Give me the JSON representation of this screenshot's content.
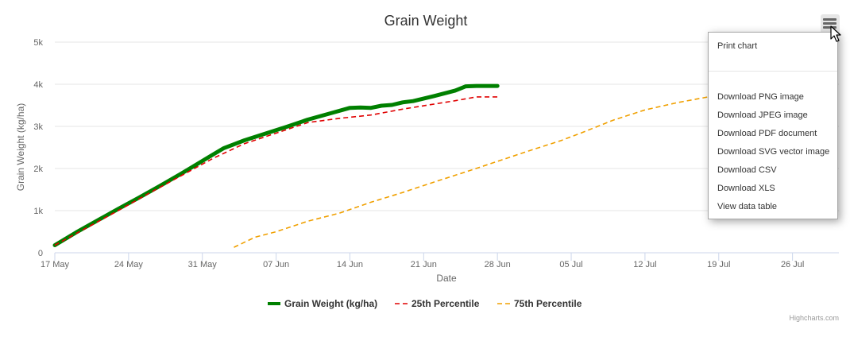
{
  "chart_data": {
    "type": "line",
    "title": "Grain Weight",
    "xlabel": "Date",
    "ylabel": "Grain Weight (kg/ha)",
    "x_tick_labels": [
      "17 May",
      "24 May",
      "31 May",
      "07 Jun",
      "14 Jun",
      "21 Jun",
      "28 Jun",
      "05 Jul",
      "12 Jul",
      "19 Jul",
      "26 Jul"
    ],
    "x_ticks_day": [
      0,
      7,
      14,
      21,
      28,
      35,
      42,
      49,
      56,
      63,
      70
    ],
    "x_range_day": [
      0,
      74.4
    ],
    "y_tick_labels": [
      "0",
      "1k",
      "2k",
      "3k",
      "4k",
      "5k"
    ],
    "y_ticks": [
      0,
      1000,
      2000,
      3000,
      4000,
      5000
    ],
    "ylim": [
      0,
      5000
    ],
    "grid": true,
    "legend_position": "bottom-center",
    "series": [
      {
        "name": "Grain Weight (kg/ha)",
        "color": "#008000",
        "style": "solid",
        "x_day": [
          0,
          2,
          4,
          6,
          8,
          10,
          12,
          14,
          15,
          16,
          18,
          20,
          22,
          24,
          26,
          28,
          29,
          30,
          31,
          32,
          33,
          34,
          36,
          38,
          39,
          40,
          42
        ],
        "y": [
          180,
          480,
          760,
          1040,
          1310,
          1590,
          1880,
          2180,
          2330,
          2480,
          2670,
          2830,
          2990,
          3160,
          3300,
          3440,
          3450,
          3440,
          3490,
          3510,
          3570,
          3600,
          3720,
          3850,
          3950,
          3960,
          3960
        ]
      },
      {
        "name": "25th Percentile",
        "color": "#e00000",
        "style": "dash",
        "x_day": [
          0,
          3,
          6,
          9,
          12,
          15,
          18,
          21,
          24,
          27,
          30,
          33,
          36,
          38,
          40,
          42
        ],
        "y": [
          180,
          590,
          1000,
          1420,
          1830,
          2240,
          2590,
          2840,
          3090,
          3190,
          3270,
          3410,
          3530,
          3610,
          3700,
          3700
        ]
      },
      {
        "name": "75th Percentile",
        "color": "#f0a000",
        "style": "dash",
        "x_day": [
          17,
          19,
          21,
          24,
          27,
          30,
          33,
          36,
          39,
          42,
          45,
          48,
          50,
          53,
          56,
          59,
          62
        ],
        "y": [
          130,
          370,
          500,
          750,
          940,
          1200,
          1430,
          1680,
          1920,
          2170,
          2420,
          2660,
          2850,
          3150,
          3390,
          3560,
          3700
        ]
      }
    ]
  },
  "menu": {
    "items": [
      "Print chart",
      "Download PNG image",
      "Download JPEG image",
      "Download PDF document",
      "Download SVG vector image",
      "Download CSV",
      "Download XLS",
      "View data table"
    ]
  },
  "credits": "Highcharts.com",
  "icons": {
    "menu": "hamburger-menu-icon",
    "cursor": "mouse-pointer-icon"
  }
}
